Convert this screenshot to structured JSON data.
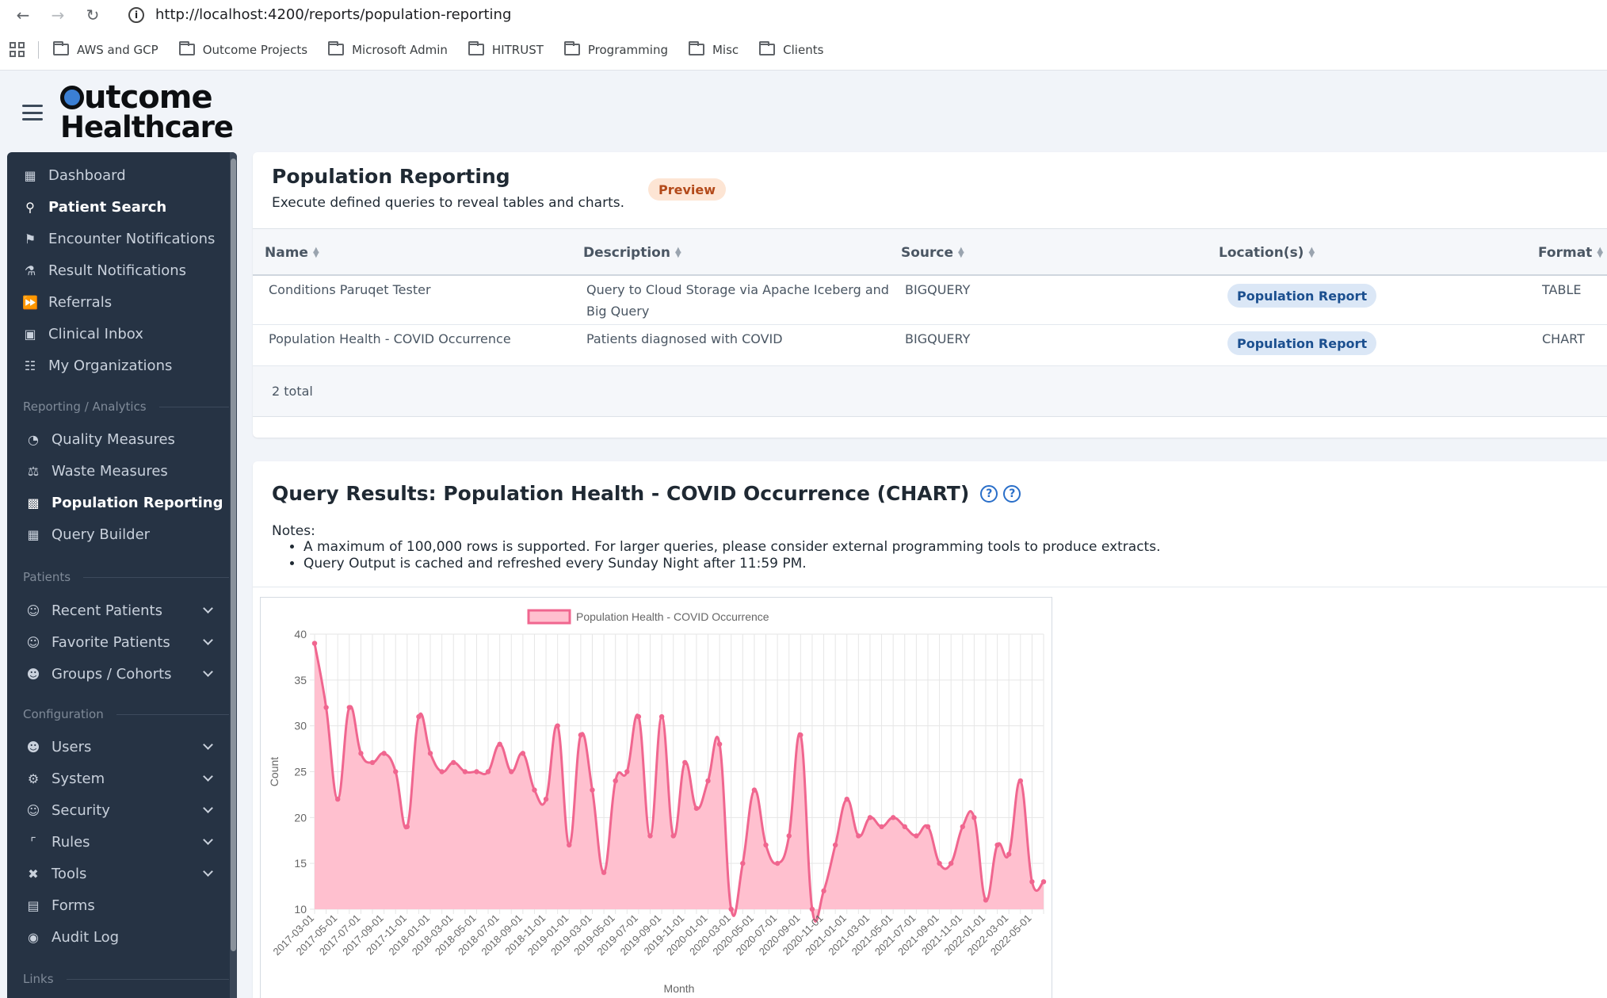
{
  "browser": {
    "url": "http://localhost:4200/reports/population-reporting",
    "bookmarks": [
      "AWS and GCP",
      "Outcome Projects",
      "Microsoft Admin",
      "HITRUST",
      "Programming",
      "Misc",
      "Clients"
    ]
  },
  "brand": {
    "line1": "utcome",
    "line2": "Healthcare"
  },
  "sidebar": {
    "items": [
      {
        "label": "Dashboard",
        "icon": "chart-icon",
        "active": false
      },
      {
        "label": "Patient Search",
        "icon": "search-icon",
        "active": true
      },
      {
        "label": "Encounter Notifications",
        "icon": "flag-icon",
        "active": false
      },
      {
        "label": "Result Notifications",
        "icon": "flask-icon",
        "active": false
      },
      {
        "label": "Referrals",
        "icon": "forward-icon",
        "active": false
      },
      {
        "label": "Clinical Inbox",
        "icon": "inbox-icon",
        "active": false
      },
      {
        "label": "My Organizations",
        "icon": "sitemap-icon",
        "active": false
      }
    ],
    "section_reporting": "Reporting / Analytics",
    "reporting_items": [
      {
        "label": "Quality Measures",
        "icon": "pie-icon",
        "active": false
      },
      {
        "label": "Waste Measures",
        "icon": "scale-icon",
        "active": false
      },
      {
        "label": "Population Reporting",
        "icon": "monitor-icon",
        "active": true
      },
      {
        "label": "Query Builder",
        "icon": "table-icon",
        "active": false
      }
    ],
    "section_patients": "Patients",
    "patient_items": [
      {
        "label": "Recent Patients",
        "icon": "user-circle-icon"
      },
      {
        "label": "Favorite Patients",
        "icon": "user-circle-icon"
      },
      {
        "label": "Groups / Cohorts",
        "icon": "users-icon"
      }
    ],
    "section_config": "Configuration",
    "config_items": [
      {
        "label": "Users",
        "icon": "users-cog-icon",
        "chevron": true
      },
      {
        "label": "System",
        "icon": "gear-icon",
        "chevron": true
      },
      {
        "label": "Security",
        "icon": "user-lock-icon",
        "chevron": true
      },
      {
        "label": "Rules",
        "icon": "rules-icon",
        "chevron": true
      },
      {
        "label": "Tools",
        "icon": "tools-icon",
        "chevron": true
      },
      {
        "label": "Forms",
        "icon": "clipboard-icon",
        "chevron": false
      },
      {
        "label": "Audit Log",
        "icon": "eye-icon",
        "chevron": false
      }
    ],
    "section_links": "Links"
  },
  "report": {
    "title": "Population Reporting",
    "subtitle": "Execute defined queries to reveal tables and charts.",
    "badge": "Preview",
    "columns": [
      "Name",
      "Description",
      "Source",
      "Location(s)",
      "Format"
    ],
    "rows": [
      {
        "name": "Conditions Paruqet Tester",
        "description_1": "Query to Cloud Storage via Apache Iceberg and",
        "description_2": "Big Query",
        "source": "BIGQUERY",
        "location": "Population Report",
        "format": "TABLE"
      },
      {
        "name": "Population Health - COVID Occurrence",
        "description_1": "Patients diagnosed with COVID",
        "description_2": "",
        "source": "BIGQUERY",
        "location": "Population Report",
        "format": "CHART"
      }
    ],
    "total": "2 total"
  },
  "results": {
    "title": "Query Results: Population Health - COVID Occurrence (CHART)",
    "notes_label": "Notes:",
    "notes": [
      "A maximum of 100,000 rows is supported. For larger queries, please consider external programming tools to produce extracts.",
      "Query Output is cached and refreshed every Sunday Night after 11:59 PM."
    ]
  },
  "chart_data": {
    "type": "area",
    "series_name": "Population Health - COVID Occurrence",
    "xlabel": "Month",
    "ylabel": "Count",
    "ylim": [
      10,
      40
    ],
    "yticks": [
      10,
      15,
      20,
      25,
      30,
      35,
      40
    ],
    "color": "#f0668f",
    "fill": "#ffc0cf",
    "x": [
      "2017-03-01",
      "2017-04-01",
      "2017-05-01",
      "2017-06-01",
      "2017-07-01",
      "2017-08-01",
      "2017-09-01",
      "2017-10-01",
      "2017-11-01",
      "2017-12-01",
      "2018-01-01",
      "2018-02-01",
      "2018-03-01",
      "2018-04-01",
      "2018-05-01",
      "2018-06-01",
      "2018-07-01",
      "2018-08-01",
      "2018-09-01",
      "2018-10-01",
      "2018-11-01",
      "2018-12-01",
      "2019-01-01",
      "2019-02-01",
      "2019-03-01",
      "2019-04-01",
      "2019-05-01",
      "2019-06-01",
      "2019-07-01",
      "2019-08-01",
      "2019-09-01",
      "2019-10-01",
      "2019-11-01",
      "2019-12-01",
      "2020-01-01",
      "2020-02-01",
      "2020-03-01",
      "2020-04-01",
      "2020-05-01",
      "2020-06-01",
      "2020-07-01",
      "2020-08-01",
      "2020-09-01",
      "2020-10-01",
      "2020-11-01",
      "2020-12-01",
      "2021-01-01",
      "2021-02-01",
      "2021-03-01",
      "2021-04-01",
      "2021-05-01",
      "2021-06-01",
      "2021-07-01",
      "2021-08-01",
      "2021-09-01",
      "2021-10-01",
      "2021-11-01",
      "2021-12-01",
      "2022-01-01",
      "2022-02-01",
      "2022-03-01",
      "2022-04-01",
      "2022-05-01",
      "2022-06-01"
    ],
    "values": [
      39,
      32,
      22,
      32,
      27,
      26,
      27,
      25,
      19,
      31,
      27,
      25,
      26,
      25,
      25,
      25,
      28,
      25,
      27,
      23,
      22,
      30,
      17,
      29,
      23,
      14,
      24,
      25,
      31,
      18,
      31,
      18,
      26,
      21,
      24,
      28,
      10,
      15,
      23,
      17,
      15,
      18,
      29,
      10,
      12,
      17,
      22,
      18,
      20,
      19,
      20,
      19,
      18,
      19,
      15,
      15,
      19,
      20,
      11,
      17,
      16,
      24,
      13,
      13
    ]
  }
}
